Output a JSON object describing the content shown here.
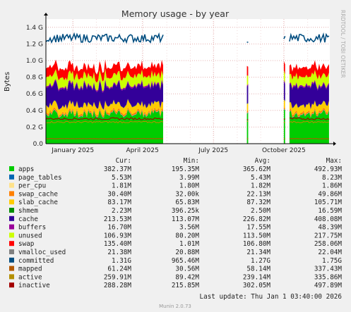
{
  "title": "Memory usage - by year",
  "side_label": "RRDTOOL / TOBI OETIKER",
  "footer_version": "Munin 2.0.73",
  "last_update": "Last update: Thu Jan  1 03:40:00 2026",
  "column_headers": [
    "Cur:",
    "Min:",
    "Avg:",
    "Max:"
  ],
  "legend": [
    {
      "name": "apps",
      "color": "#00cc00",
      "cur": "382.37M",
      "min": "195.35M",
      "avg": "365.62M",
      "max": "492.93M"
    },
    {
      "name": "page_tables",
      "color": "#0066b3",
      "cur": "5.53M",
      "min": "3.99M",
      "avg": "5.43M",
      "max": "8.23M"
    },
    {
      "name": "per_cpu",
      "color": "#ffe28a",
      "cur": "1.81M",
      "min": "1.80M",
      "avg": "1.82M",
      "max": "1.86M"
    },
    {
      "name": "swap_cache",
      "color": "#ff8000",
      "cur": "30.40M",
      "min": "32.00k",
      "avg": "22.13M",
      "max": "49.86M"
    },
    {
      "name": "slab_cache",
      "color": "#ffcc00",
      "cur": "83.17M",
      "min": "65.83M",
      "avg": "87.32M",
      "max": "105.71M"
    },
    {
      "name": "shmem",
      "color": "#008f00",
      "cur": "2.23M",
      "min": "396.25k",
      "avg": "2.50M",
      "max": "16.59M"
    },
    {
      "name": "cache",
      "color": "#330099",
      "cur": "213.53M",
      "min": "113.07M",
      "avg": "226.82M",
      "max": "408.08M"
    },
    {
      "name": "buffers",
      "color": "#990099",
      "cur": "16.70M",
      "min": "3.56M",
      "avg": "17.55M",
      "max": "48.39M"
    },
    {
      "name": "unused",
      "color": "#ccff00",
      "cur": "106.93M",
      "min": "80.20M",
      "avg": "113.50M",
      "max": "217.75M"
    },
    {
      "name": "swap",
      "color": "#ff0000",
      "cur": "135.40M",
      "min": "1.01M",
      "avg": "106.80M",
      "max": "258.06M"
    },
    {
      "name": "vmalloc_used",
      "color": "#808080",
      "cur": "21.38M",
      "min": "20.88M",
      "avg": "21.34M",
      "max": "22.04M"
    },
    {
      "name": "committed",
      "color": "#004d80",
      "cur": "1.31G",
      "min": "965.46M",
      "avg": "1.27G",
      "max": "1.75G"
    },
    {
      "name": "mapped",
      "color": "#b35900",
      "cur": "61.24M",
      "min": "30.56M",
      "avg": "58.14M",
      "max": "337.43M"
    },
    {
      "name": "active",
      "color": "#b38f00",
      "cur": "259.91M",
      "min": "89.42M",
      "avg": "239.14M",
      "max": "335.86M"
    },
    {
      "name": "inactive",
      "color": "#a30000",
      "cur": "288.28M",
      "min": "215.85M",
      "avg": "302.05M",
      "max": "497.89M"
    }
  ],
  "chart_data": {
    "type": "area",
    "title": "Memory usage - by year",
    "ylabel": "Bytes",
    "ylim": [
      0,
      1.5
    ],
    "y_ticks": [
      0.0,
      0.2,
      0.4,
      0.6,
      0.8,
      1.0,
      1.2,
      1.4
    ],
    "y_tick_labels": [
      "0.0",
      "0.2 G",
      "0.4 G",
      "0.6 G",
      "0.8 G",
      "1.0 G",
      "1.2 G",
      "1.4 G"
    ],
    "x_ticks": [
      {
        "label": "January 2025",
        "pos": 0.095
      },
      {
        "label": "April 2025",
        "pos": 0.34
      },
      {
        "label": "July 2025",
        "pos": 0.59
      },
      {
        "label": "October 2025",
        "pos": 0.838
      }
    ],
    "stack_order": [
      "apps",
      "page_tables",
      "per_cpu",
      "swap_cache",
      "slab_cache",
      "shmem",
      "cache",
      "buffers",
      "unused",
      "swap"
    ],
    "stack_typical_G": [
      0.36,
      0.005,
      0.002,
      0.022,
      0.083,
      0.003,
      0.22,
      0.017,
      0.11,
      0.11
    ],
    "lines_typical_G": {
      "committed": 1.27,
      "mapped": 0.06,
      "active": 0.26,
      "inactive": 0.3
    },
    "segments": [
      {
        "start": 0.0,
        "end": 0.415
      },
      {
        "start": 0.708,
        "end": 0.71
      },
      {
        "start": 0.838,
        "end": 0.84
      },
      {
        "start": 0.858,
        "end": 1.0
      }
    ],
    "grid": true
  }
}
